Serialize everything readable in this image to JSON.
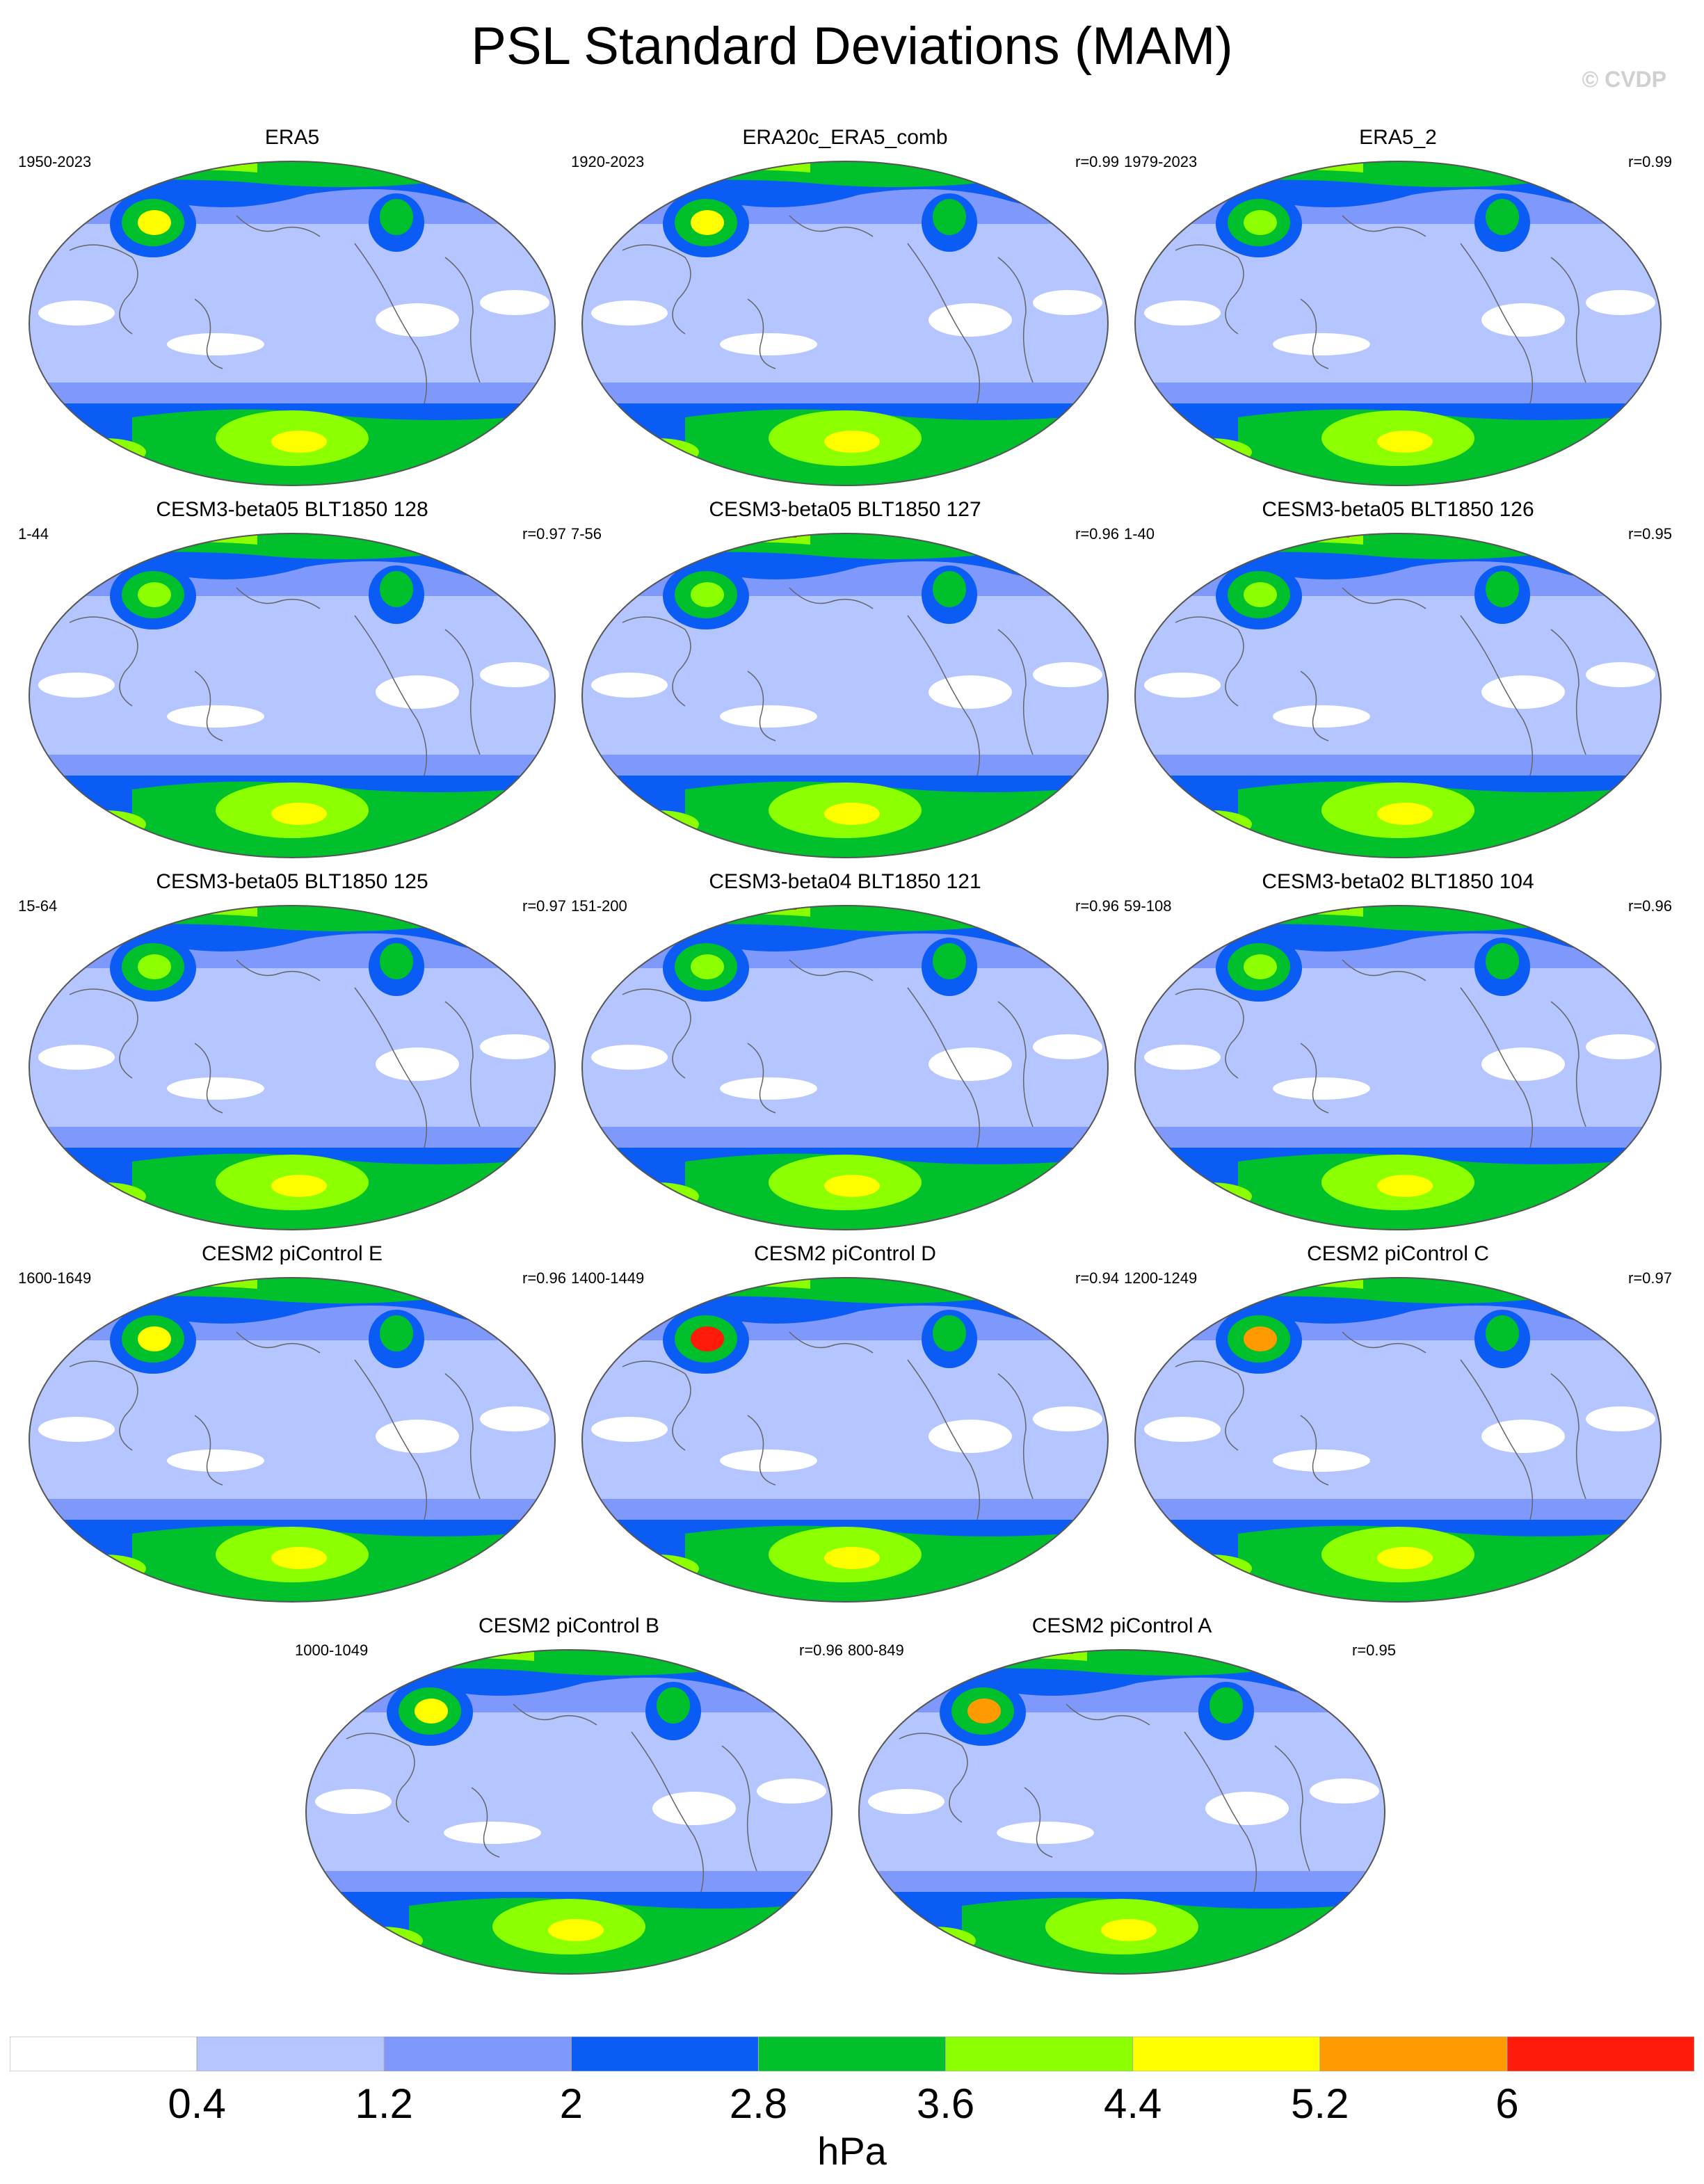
{
  "title": "PSL Standard Deviations (MAM)",
  "watermark": "© CVDP",
  "panels": [
    {
      "title": "ERA5",
      "years": "1950-2023",
      "r": ""
    },
    {
      "title": "ERA20c_ERA5_comb",
      "years": "1920-2023",
      "r": "r=0.99"
    },
    {
      "title": "ERA5_2",
      "years": "1979-2023",
      "r": "r=0.99"
    },
    {
      "title": "CESM3-beta05 BLT1850 128",
      "years": "1-44",
      "r": "r=0.97"
    },
    {
      "title": "CESM3-beta05 BLT1850 127",
      "years": "7-56",
      "r": "r=0.96"
    },
    {
      "title": "CESM3-beta05 BLT1850 126",
      "years": "1-40",
      "r": "r=0.95"
    },
    {
      "title": "CESM3-beta05 BLT1850 125",
      "years": "15-64",
      "r": "r=0.97"
    },
    {
      "title": "CESM3-beta04 BLT1850 121",
      "years": "151-200",
      "r": "r=0.96"
    },
    {
      "title": "CESM3-beta02 BLT1850 104",
      "years": "59-108",
      "r": "r=0.96"
    },
    {
      "title": "CESM2 piControl E",
      "years": "1600-1649",
      "r": "r=0.96"
    },
    {
      "title": "CESM2 piControl D",
      "years": "1400-1449",
      "r": "r=0.94"
    },
    {
      "title": "CESM2 piControl C",
      "years": "1200-1249",
      "r": "r=0.97"
    },
    {
      "title": "CESM2 piControl B",
      "years": "1000-1049",
      "r": "r=0.96"
    },
    {
      "title": "CESM2 piControl A",
      "years": "800-849",
      "r": "r=0.95"
    }
  ],
  "colorbar": {
    "colors": [
      "#ffffff",
      "#b4c5ff",
      "#7f98fb",
      "#0a5cf5",
      "#00c02c",
      "#8cff00",
      "#ffff00",
      "#ff9a00",
      "#ff1a0a"
    ],
    "ticks": [
      "0.4",
      "1.2",
      "2",
      "2.8",
      "3.6",
      "4.4",
      "5.2",
      "6"
    ],
    "units": "hPa"
  }
}
